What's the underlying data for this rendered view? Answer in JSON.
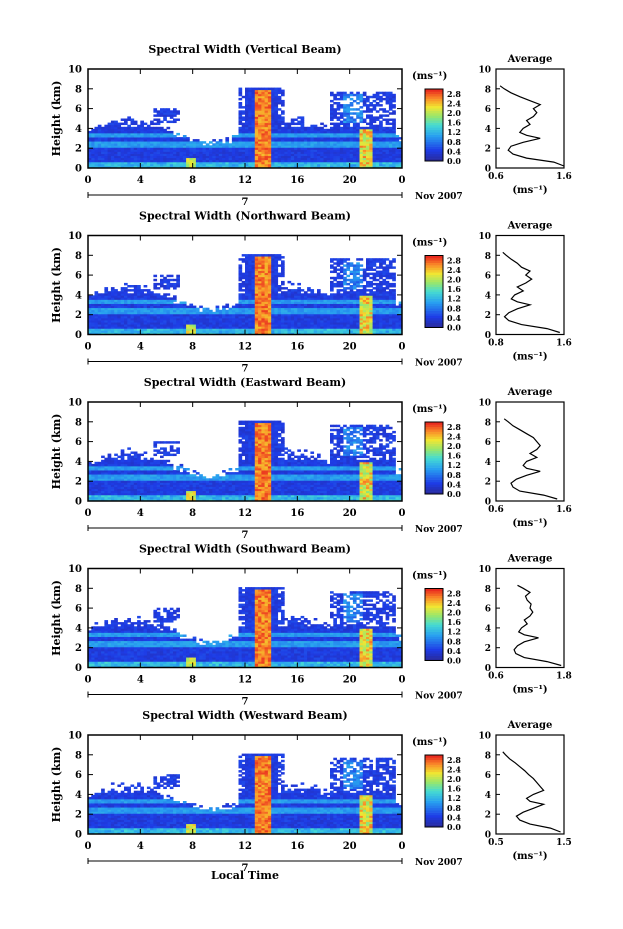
{
  "chart_data": {
    "type": "heatmap",
    "xlabel": "Local Time",
    "date_label": "Nov 2007",
    "day_label": "7",
    "x_ticks": [
      "0",
      "4",
      "8",
      "12",
      "16",
      "20",
      "0"
    ],
    "xlim": [
      0,
      24
    ],
    "ylabel": "Height (km)",
    "y_ticks": [
      "0",
      "2",
      "4",
      "6",
      "8",
      "10"
    ],
    "ylim": [
      0,
      10
    ],
    "colorbar": {
      "unit": "(ms⁻¹)",
      "ticks": [
        "0.0",
        "0.4",
        "0.8",
        "1.2",
        "1.6",
        "2.0",
        "2.4",
        "2.8"
      ],
      "range": [
        0,
        3.0
      ]
    },
    "profile": {
      "title": "Average",
      "xlabel": "(ms⁻¹)",
      "y_ticks": [
        "0",
        "2",
        "4",
        "6",
        "8",
        "10"
      ],
      "ylim": [
        0,
        10
      ]
    },
    "panels": [
      {
        "title": "Spectral Width (Vertical Beam)",
        "profile_ticks": [
          "0.6",
          "1.6"
        ],
        "profile_xlim": [
          0.6,
          1.6
        ],
        "profile": [
          [
            0.2,
            1.6
          ],
          [
            0.6,
            1.45
          ],
          [
            1.0,
            1.05
          ],
          [
            1.4,
            0.85
          ],
          [
            1.8,
            0.78
          ],
          [
            2.2,
            0.82
          ],
          [
            2.6,
            1.0
          ],
          [
            3.0,
            1.25
          ],
          [
            3.3,
            1.05
          ],
          [
            3.6,
            0.95
          ],
          [
            4.0,
            1.0
          ],
          [
            4.4,
            1.1
          ],
          [
            4.8,
            1.05
          ],
          [
            5.2,
            1.15
          ],
          [
            5.6,
            1.2
          ],
          [
            6.0,
            1.15
          ],
          [
            6.4,
            1.25
          ],
          [
            6.8,
            1.1
          ],
          [
            7.2,
            0.95
          ],
          [
            7.6,
            0.82
          ],
          [
            8.0,
            0.72
          ],
          [
            8.3,
            0.66
          ]
        ]
      },
      {
        "title": "Spectral Width (Northward Beam)",
        "profile_ticks": [
          "0.8",
          "1.6"
        ],
        "profile_xlim": [
          0.8,
          1.6
        ],
        "profile": [
          [
            0.2,
            1.55
          ],
          [
            0.6,
            1.4
          ],
          [
            1.0,
            1.1
          ],
          [
            1.4,
            0.95
          ],
          [
            1.8,
            0.9
          ],
          [
            2.2,
            0.95
          ],
          [
            2.6,
            1.05
          ],
          [
            3.0,
            1.2
          ],
          [
            3.3,
            1.05
          ],
          [
            3.6,
            0.98
          ],
          [
            4.0,
            1.02
          ],
          [
            4.4,
            1.12
          ],
          [
            4.8,
            1.05
          ],
          [
            5.2,
            1.15
          ],
          [
            5.6,
            1.22
          ],
          [
            6.0,
            1.15
          ],
          [
            6.4,
            1.2
          ],
          [
            6.8,
            1.1
          ],
          [
            7.2,
            1.05
          ],
          [
            7.6,
            0.98
          ],
          [
            8.0,
            0.92
          ],
          [
            8.3,
            0.88
          ]
        ]
      },
      {
        "title": "Spectral Width (Eastward Beam)",
        "profile_ticks": [
          "0.6",
          "1.6"
        ],
        "profile_xlim": [
          0.6,
          1.6
        ],
        "profile": [
          [
            0.2,
            1.5
          ],
          [
            0.6,
            1.3
          ],
          [
            1.0,
            0.95
          ],
          [
            1.4,
            0.85
          ],
          [
            1.8,
            0.82
          ],
          [
            2.2,
            0.9
          ],
          [
            2.6,
            1.05
          ],
          [
            3.0,
            1.25
          ],
          [
            3.3,
            1.05
          ],
          [
            3.6,
            1.0
          ],
          [
            4.0,
            1.05
          ],
          [
            4.4,
            1.2
          ],
          [
            4.8,
            1.1
          ],
          [
            5.2,
            1.2
          ],
          [
            5.6,
            1.25
          ],
          [
            6.0,
            1.2
          ],
          [
            6.4,
            1.15
          ],
          [
            6.8,
            1.05
          ],
          [
            7.2,
            0.95
          ],
          [
            7.6,
            0.85
          ],
          [
            8.0,
            0.78
          ],
          [
            8.3,
            0.72
          ]
        ]
      },
      {
        "title": "Spectral Width (Southward Beam)",
        "profile_ticks": [
          "0.6",
          "1.8"
        ],
        "profile_xlim": [
          0.6,
          1.8
        ],
        "profile": [
          [
            0.2,
            1.75
          ],
          [
            0.6,
            1.5
          ],
          [
            1.0,
            1.1
          ],
          [
            1.4,
            0.95
          ],
          [
            1.8,
            0.92
          ],
          [
            2.2,
            0.98
          ],
          [
            2.6,
            1.1
          ],
          [
            3.0,
            1.35
          ],
          [
            3.3,
            1.1
          ],
          [
            3.6,
            1.0
          ],
          [
            4.0,
            1.05
          ],
          [
            4.4,
            1.15
          ],
          [
            4.8,
            1.1
          ],
          [
            5.2,
            1.2
          ],
          [
            5.6,
            1.25
          ],
          [
            6.0,
            1.2
          ],
          [
            6.4,
            1.22
          ],
          [
            6.8,
            1.15
          ],
          [
            7.2,
            1.12
          ],
          [
            7.6,
            1.2
          ],
          [
            8.0,
            1.08
          ],
          [
            8.3,
            0.98
          ]
        ]
      },
      {
        "title": "Spectral Width (Westward Beam)",
        "profile_ticks": [
          "0.5",
          "1.5"
        ],
        "profile_xlim": [
          0.5,
          1.5
        ],
        "profile": [
          [
            0.2,
            1.45
          ],
          [
            0.6,
            1.3
          ],
          [
            1.0,
            1.0
          ],
          [
            1.4,
            0.85
          ],
          [
            1.8,
            0.8
          ],
          [
            2.2,
            0.9
          ],
          [
            2.6,
            1.05
          ],
          [
            3.0,
            1.2
          ],
          [
            3.3,
            1.0
          ],
          [
            3.6,
            0.95
          ],
          [
            4.0,
            1.05
          ],
          [
            4.4,
            1.2
          ],
          [
            4.8,
            1.15
          ],
          [
            5.2,
            1.1
          ],
          [
            5.6,
            1.05
          ],
          [
            6.0,
            0.98
          ],
          [
            6.4,
            0.92
          ],
          [
            6.8,
            0.85
          ],
          [
            7.2,
            0.78
          ],
          [
            7.6,
            0.7
          ],
          [
            8.0,
            0.64
          ],
          [
            8.3,
            0.6
          ]
        ]
      }
    ]
  }
}
